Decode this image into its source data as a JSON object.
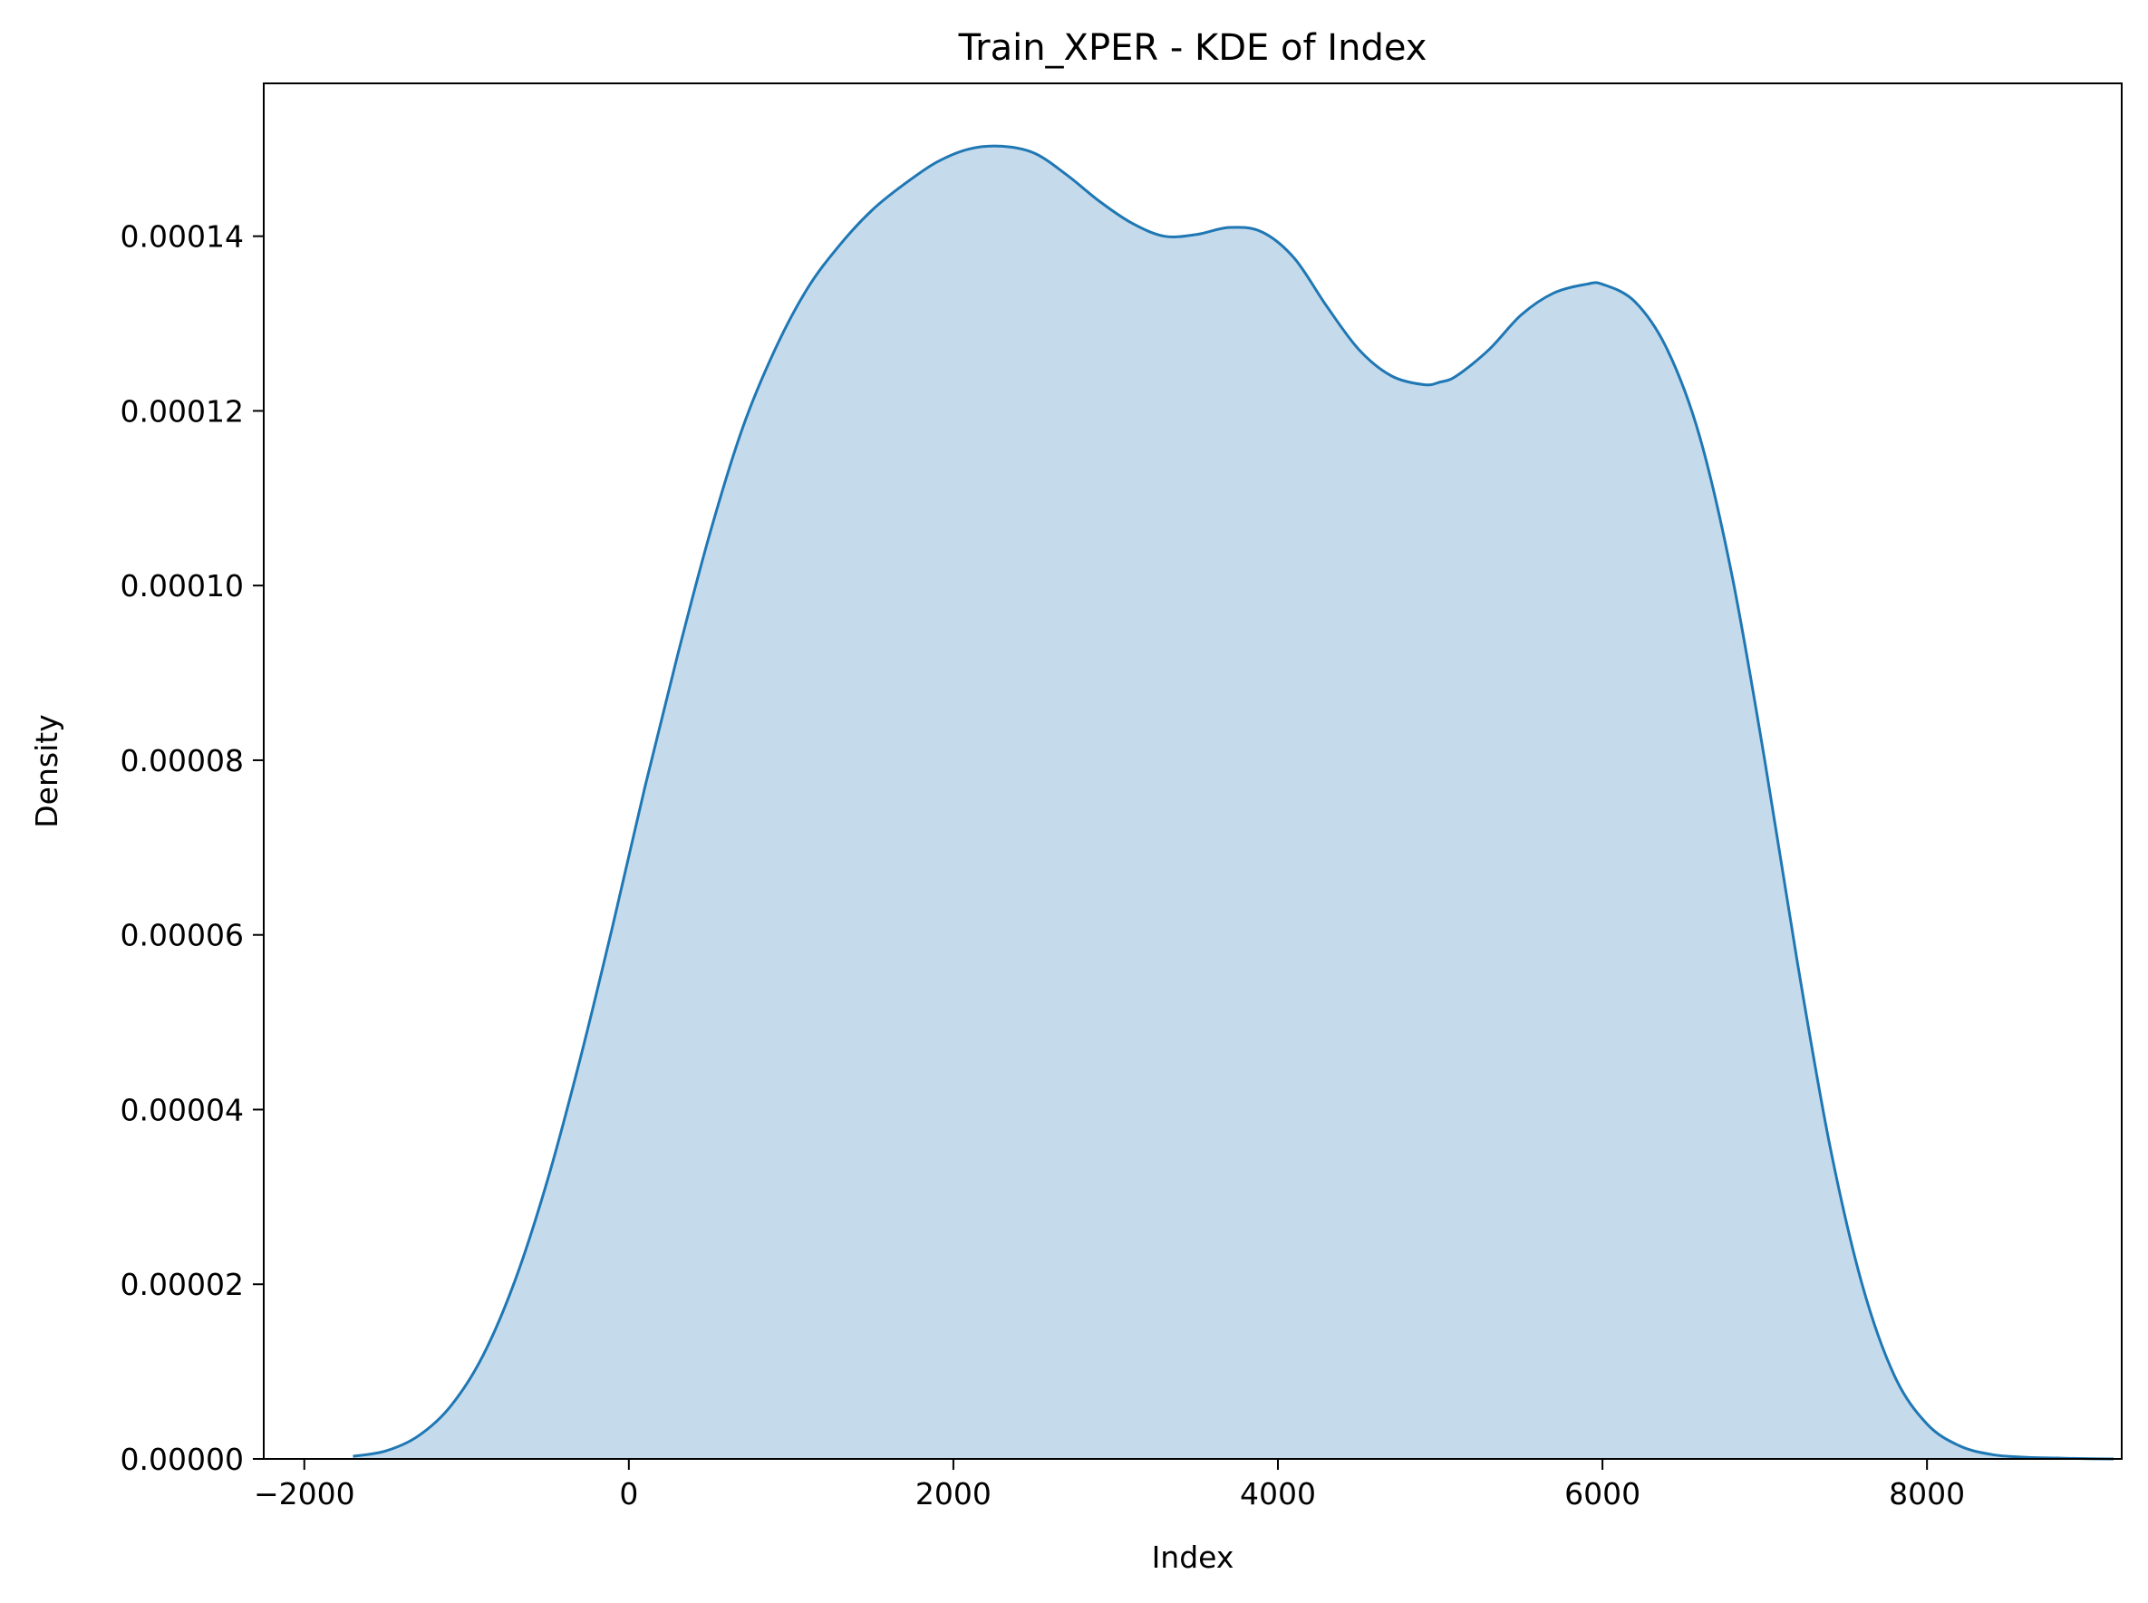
{
  "chart_data": {
    "type": "area",
    "title": "Train_XPER - KDE of Index",
    "xlabel": "Index",
    "ylabel": "Density",
    "xlim": [
      -2250,
      9200
    ],
    "ylim": [
      0,
      0.0001575
    ],
    "xticks": [
      -2000,
      0,
      2000,
      4000,
      6000,
      8000
    ],
    "xtick_labels": [
      "−2000",
      "0",
      "2000",
      "4000",
      "6000",
      "8000"
    ],
    "yticks": [
      0,
      2e-05,
      4e-05,
      6e-05,
      8e-05,
      0.0001,
      0.00012,
      0.00014
    ],
    "ytick_labels": [
      "0.00000",
      "0.00002",
      "0.00004",
      "0.00006",
      "0.00008",
      "0.00010",
      "0.00012",
      "0.00014"
    ],
    "grid": false,
    "series": [
      {
        "color": "#1f77b4",
        "fill_color": "#c5dbec",
        "x": [
          -1700,
          -1500,
          -1300,
          -1100,
          -900,
          -700,
          -500,
          -300,
          -100,
          100,
          300,
          500,
          700,
          900,
          1100,
          1300,
          1500,
          1700,
          1900,
          2100,
          2300,
          2500,
          2700,
          2900,
          3100,
          3300,
          3500,
          3700,
          3900,
          4100,
          4300,
          4500,
          4700,
          4900,
          5000,
          5100,
          5300,
          5500,
          5700,
          5900,
          6000,
          6200,
          6400,
          6600,
          6800,
          7000,
          7200,
          7400,
          7600,
          7800,
          8000,
          8200,
          8400,
          8600,
          8800,
          9000,
          9150
        ],
        "y": [
          3e-07,
          9e-07,
          2.6e-06,
          6e-06,
          1.18e-05,
          2.05e-05,
          3.2e-05,
          4.58e-05,
          6.1e-05,
          7.7e-05,
          9.2e-05,
          0.000106,
          0.000118,
          0.000127,
          0.000134,
          0.000139,
          0.000143,
          0.000146,
          0.0001485,
          0.00015,
          0.0001503,
          0.0001495,
          0.000147,
          0.000144,
          0.0001415,
          0.00014,
          0.0001402,
          0.000141,
          0.0001405,
          0.0001375,
          0.000132,
          0.000127,
          0.000124,
          0.000123,
          0.0001233,
          0.000124,
          0.000127,
          0.000131,
          0.0001335,
          0.0001345,
          0.0001345,
          0.0001325,
          0.000127,
          0.000117,
          0.000101,
          8e-05,
          5.7e-05,
          3.6e-05,
          2e-05,
          9.5e-06,
          4e-06,
          1.5e-06,
          5e-07,
          2e-07,
          1e-07,
          2e-08,
          0.0
        ]
      }
    ]
  }
}
